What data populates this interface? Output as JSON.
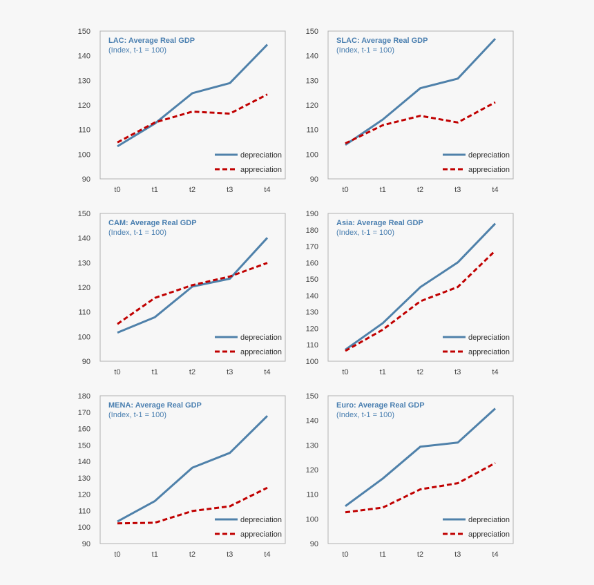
{
  "colors": {
    "depreciation": "#4f81aa",
    "appreciation": "#c00000",
    "frame": "#b0b0b0",
    "plot_bg": "#f7f7f7"
  },
  "chart_data": [
    {
      "type": "line",
      "title": "LAC: Average Real GDP",
      "subtitle": "(Index, t-1 = 100)",
      "categories": [
        "t0",
        "t1",
        "t2",
        "t3",
        "t4"
      ],
      "ylim": [
        90,
        150
      ],
      "yticks": [
        "90",
        "100",
        "110",
        "120",
        "130",
        "140",
        "150"
      ],
      "series": [
        {
          "name": "depreciation",
          "values": [
            103.2,
            112.5,
            124.8,
            128.9,
            144.5
          ]
        },
        {
          "name": "appreciation",
          "values": [
            104.8,
            112.9,
            117.3,
            116.5,
            124.3
          ]
        }
      ],
      "legend": "bottom-right"
    },
    {
      "type": "line",
      "title": "SLAC: Average Real GDP",
      "subtitle": "(Index, t-1 = 100)",
      "categories": [
        "t0",
        "t1",
        "t2",
        "t3",
        "t4"
      ],
      "ylim": [
        90,
        150
      ],
      "yticks": [
        "90",
        "100",
        "110",
        "120",
        "130",
        "140",
        "150"
      ],
      "series": [
        {
          "name": "depreciation",
          "values": [
            103.8,
            114.1,
            126.8,
            130.7,
            146.9
          ]
        },
        {
          "name": "appreciation",
          "values": [
            104.4,
            111.8,
            115.6,
            112.9,
            121.1
          ]
        }
      ],
      "legend": "bottom-right"
    },
    {
      "type": "line",
      "title": "CAM: Average Real GDP",
      "subtitle": "(Index, t-1 = 100)",
      "categories": [
        "t0",
        "t1",
        "t2",
        "t3",
        "t4"
      ],
      "ylim": [
        90,
        150
      ],
      "yticks": [
        "90",
        "100",
        "110",
        "120",
        "130",
        "140",
        "150"
      ],
      "series": [
        {
          "name": "depreciation",
          "values": [
            101.6,
            107.9,
            120.3,
            123.5,
            140.1
          ]
        },
        {
          "name": "appreciation",
          "values": [
            105.1,
            115.7,
            120.9,
            124.4,
            129.9
          ]
        }
      ],
      "legend": "bottom-right"
    },
    {
      "type": "line",
      "title": "Asia: Average Real GDP",
      "subtitle": "(Index, t-1 = 100)",
      "categories": [
        "t0",
        "t1",
        "t2",
        "t3",
        "t4"
      ],
      "ylim": [
        100,
        190
      ],
      "yticks": [
        "100",
        "110",
        "120",
        "130",
        "140",
        "150",
        "160",
        "170",
        "180",
        "190"
      ],
      "series": [
        {
          "name": "depreciation",
          "values": [
            107.0,
            123.2,
            145.1,
            160.2,
            183.8
          ]
        },
        {
          "name": "appreciation",
          "values": [
            106.3,
            119.2,
            136.5,
            145.2,
            167.3
          ]
        }
      ],
      "legend": "bottom-right"
    },
    {
      "type": "line",
      "title": "MENA: Average Real GDP",
      "subtitle": "(Index, t-1 = 100)",
      "categories": [
        "t0",
        "t1",
        "t2",
        "t3",
        "t4"
      ],
      "ylim": [
        90,
        180
      ],
      "yticks": [
        "90",
        "100",
        "110",
        "120",
        "130",
        "140",
        "150",
        "160",
        "170",
        "180"
      ],
      "series": [
        {
          "name": "depreciation",
          "values": [
            103.4,
            115.9,
            136.2,
            145.2,
            167.7
          ]
        },
        {
          "name": "appreciation",
          "values": [
            102.3,
            102.7,
            109.8,
            112.7,
            124.0
          ]
        }
      ],
      "legend": "bottom-right"
    },
    {
      "type": "line",
      "title": "Euro: Average Real GDP",
      "subtitle": "(Index, t-1 = 100)",
      "categories": [
        "t0",
        "t1",
        "t2",
        "t3",
        "t4"
      ],
      "ylim": [
        90,
        150
      ],
      "yticks": [
        "90",
        "100",
        "110",
        "120",
        "130",
        "140",
        "150"
      ],
      "series": [
        {
          "name": "depreciation",
          "values": [
            105.2,
            116.4,
            129.3,
            131.0,
            144.8
          ]
        },
        {
          "name": "appreciation",
          "values": [
            102.7,
            104.6,
            112.0,
            114.5,
            122.7
          ]
        }
      ],
      "legend": "bottom-right"
    }
  ]
}
